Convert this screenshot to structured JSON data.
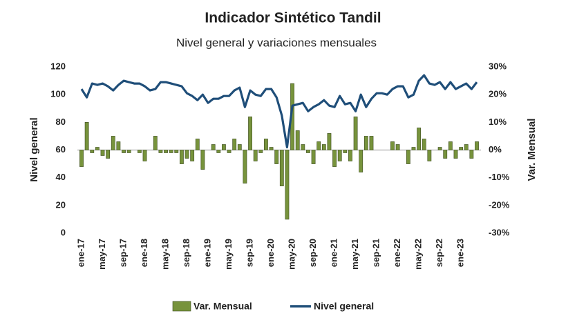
{
  "chart_data": {
    "type": "combo",
    "title": "Indicador Sintético Tandil",
    "subtitle": "Nivel general y variaciones mensuales",
    "ylabel": "Nivel general",
    "y2label": "Var. Mensual",
    "categories": [
      "ene-17",
      null,
      null,
      null,
      "may-17",
      null,
      null,
      null,
      "sep-17",
      null,
      null,
      null,
      "ene-18",
      null,
      null,
      null,
      "may-18",
      null,
      null,
      null,
      "sep-18",
      null,
      null,
      null,
      "ene-19",
      null,
      null,
      null,
      "may-19",
      null,
      null,
      null,
      "sep-19",
      null,
      null,
      null,
      "ene-20",
      null,
      null,
      null,
      "may-20",
      null,
      null,
      null,
      "sep-20",
      null,
      null,
      null,
      "ene-21",
      null,
      null,
      null,
      "may-21",
      null,
      null,
      null,
      "sep-21",
      null,
      null,
      null,
      "ene-22",
      null,
      null,
      null,
      "may-22",
      null,
      null,
      null,
      "sep-22",
      null,
      null,
      null,
      "ene-23",
      null,
      null,
      null
    ],
    "series": [
      {
        "name": "Var. Mensual",
        "type": "bar",
        "axis": "y2",
        "color": "#77933c",
        "values": [
          -6,
          10,
          -1,
          1,
          -2,
          -3,
          5,
          3,
          -1,
          -1,
          0,
          -1,
          -4,
          0,
          5,
          -1,
          -1,
          -1,
          -1,
          -5,
          -3,
          -4,
          4,
          -7,
          0,
          2,
          -1,
          2,
          -1,
          4,
          2,
          -12,
          12,
          -4,
          -1,
          4,
          1,
          -5,
          -13,
          -25,
          24,
          7,
          2,
          -1,
          -5,
          3,
          2,
          6,
          -6,
          -4,
          -1,
          -4,
          12,
          -8,
          5,
          5,
          0,
          0,
          0,
          3,
          2,
          0,
          -5,
          1,
          8,
          4,
          -4,
          0,
          1,
          -3,
          3,
          -3,
          1,
          2,
          -3,
          3
        ]
      },
      {
        "name": "Nivel general",
        "type": "line",
        "color": "#1f4e79",
        "values": [
          104,
          98,
          108,
          107,
          108,
          106,
          103,
          107,
          110,
          109,
          108,
          108,
          106,
          103,
          104,
          109,
          109,
          108,
          107,
          106,
          101,
          99,
          96,
          100,
          94,
          97,
          97,
          99,
          99,
          103,
          105,
          91,
          103,
          100,
          99,
          104,
          104,
          98,
          85,
          62,
          92,
          93,
          94,
          88,
          91,
          93,
          96,
          92,
          91,
          99,
          93,
          94,
          88,
          100,
          91,
          97,
          101,
          101,
          100,
          104,
          106,
          106,
          98,
          100,
          110,
          114,
          108,
          107,
          109,
          104,
          109,
          104,
          106,
          108,
          104,
          109
        ]
      }
    ],
    "ylim": [
      0,
      120
    ],
    "yticks": [
      0,
      20,
      40,
      60,
      80,
      100,
      120
    ],
    "y2lim": [
      -30,
      30
    ],
    "y2ticks": [
      {
        "value": -30,
        "label": "-30%"
      },
      {
        "value": -20,
        "label": "-20%"
      },
      {
        "value": -10,
        "label": "-10%"
      },
      {
        "value": 0,
        "label": "0%"
      },
      {
        "value": 10,
        "label": "10%"
      },
      {
        "value": 20,
        "label": "20%"
      },
      {
        "value": 30,
        "label": "30%"
      }
    ]
  }
}
